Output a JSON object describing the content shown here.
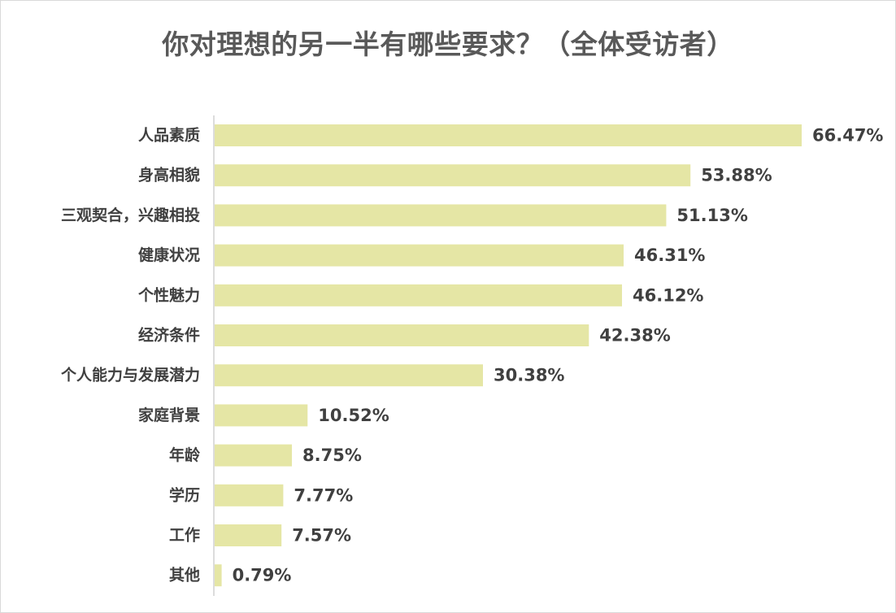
{
  "chart_data": {
    "type": "bar",
    "orientation": "horizontal",
    "title": "你对理想的另一半有哪些要求？（全体受访者）",
    "categories": [
      "人品素质",
      "身高相貌",
      "三观契合，兴趣相投",
      "健康状况",
      "个性魅力",
      "经济条件",
      "个人能力与发展潜力",
      "家庭背景",
      "年龄",
      "学历",
      "工作",
      "其他"
    ],
    "values": [
      66.47,
      53.88,
      51.13,
      46.31,
      46.12,
      42.38,
      30.38,
      10.52,
      8.75,
      7.77,
      7.57,
      0.79
    ],
    "value_labels": [
      "66.47%",
      "53.88%",
      "51.13%",
      "46.31%",
      "46.12%",
      "42.38%",
      "30.38%",
      "10.52%",
      "8.75%",
      "7.77%",
      "7.57%",
      "0.79%"
    ],
    "xlim": [
      0,
      66.47
    ],
    "grid": false,
    "legend": "none",
    "bar_color": "#e5e6a5",
    "axis_color": "#d0d0d0",
    "text_color": "#404040"
  }
}
